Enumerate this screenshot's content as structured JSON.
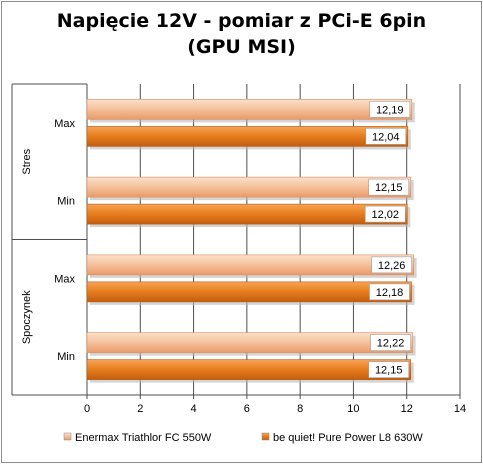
{
  "chart_data": {
    "type": "bar",
    "orientation": "horizontal",
    "title": "Napięcie 12V - pomiar z PCi-E 6pin\n(GPU MSI)",
    "groups": [
      {
        "name": "Stres",
        "categories": [
          "Max",
          "Min"
        ]
      },
      {
        "name": "Spoczynek",
        "categories": [
          "Max",
          "Min"
        ]
      }
    ],
    "series": [
      {
        "name": "Enermax Triathlor FC 550W",
        "values": [
          12.19,
          12.15,
          12.26,
          12.22
        ],
        "labels": [
          "12,19",
          "12,15",
          "12,26",
          "12,22"
        ],
        "color": "#f2b48c"
      },
      {
        "name": "be quiet! Pure Power L8 630W",
        "values": [
          12.04,
          12.02,
          12.18,
          12.15
        ],
        "labels": [
          "12,04",
          "12,02",
          "12,18",
          "12,15"
        ],
        "color": "#e0751c"
      }
    ],
    "xlim": [
      0,
      14
    ],
    "xticks": [
      "0",
      "2",
      "4",
      "6",
      "8",
      "10",
      "12",
      "14"
    ],
    "grid": true,
    "legend_position": "bottom"
  }
}
